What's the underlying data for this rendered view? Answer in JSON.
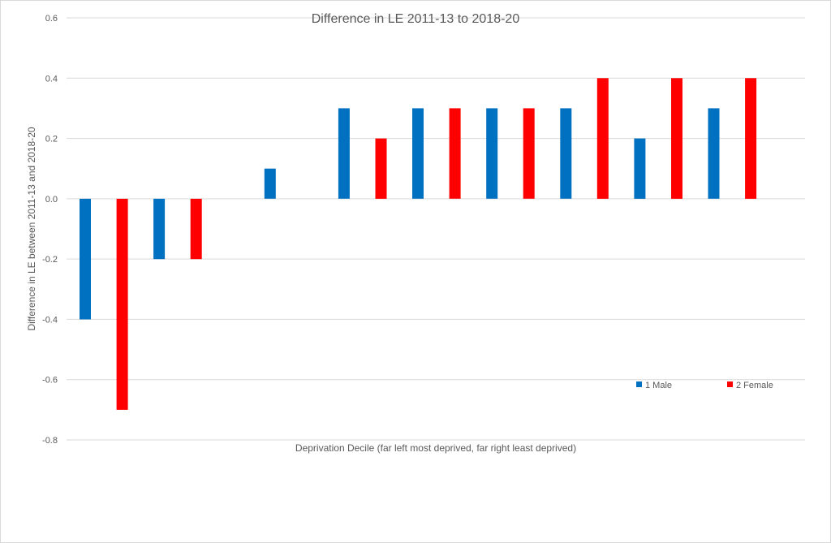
{
  "chart_data": {
    "type": "bar",
    "title": "Difference in LE 2011-13 to 2018-20",
    "xlabel": "Deprivation Decile (far left most deprived, far right least deprived)",
    "ylabel": "Difference in LE between 2011-13 and 2018-20",
    "ylim": [
      -0.8,
      0.6
    ],
    "yticks": [
      0.6,
      0.4,
      0.2,
      0.0,
      -0.2,
      -0.4,
      -0.6,
      -0.8
    ],
    "ytick_labels": [
      "0.6",
      "0.4",
      "0.2",
      "0.0",
      "-0.2",
      "-0.4",
      "-0.6",
      "-0.8"
    ],
    "grid": true,
    "legend_position": "bottom-right",
    "bars": [
      {
        "series": 0,
        "value": -0.4
      },
      {
        "series": 1,
        "value": -0.7
      },
      {
        "series": 0,
        "value": -0.2
      },
      {
        "series": 1,
        "value": -0.2
      },
      {
        "series": 0,
        "value": 0.0
      },
      {
        "series": 0,
        "value": 0.1
      },
      {
        "series": 1,
        "value": 0.0
      },
      {
        "series": 0,
        "value": 0.3
      },
      {
        "series": 1,
        "value": 0.2
      },
      {
        "series": 0,
        "value": 0.3
      },
      {
        "series": 1,
        "value": 0.3
      },
      {
        "series": 0,
        "value": 0.3
      },
      {
        "series": 1,
        "value": 0.3
      },
      {
        "series": 0,
        "value": 0.3
      },
      {
        "series": 1,
        "value": 0.4
      },
      {
        "series": 0,
        "value": 0.2
      },
      {
        "series": 1,
        "value": 0.4
      },
      {
        "series": 0,
        "value": 0.3
      },
      {
        "series": 1,
        "value": 0.4
      }
    ],
    "series": [
      {
        "name": "1 Male",
        "color": "#0070c0"
      },
      {
        "name": "2 Female",
        "color": "#ff0000"
      }
    ]
  }
}
